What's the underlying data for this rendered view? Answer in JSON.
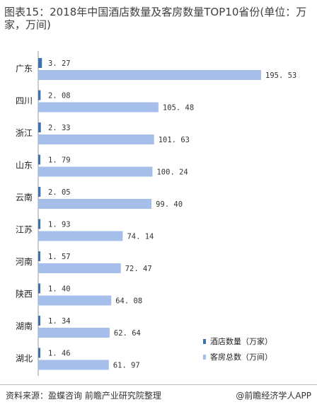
{
  "title": "图表15：2018年中国酒店数量及客房数量TOP10省份(单位：万家，万间)",
  "footer": {
    "source": "资料来源：盈蝶咨询 前瞻产业研究院整理",
    "brand": "@前瞻经济学人APP"
  },
  "colors": {
    "hotels": "#3f72af",
    "rooms": "#a6bfea",
    "axis": "#9a9a9a"
  },
  "chart_data": {
    "type": "bar",
    "orientation": "horizontal",
    "categories": [
      "广东",
      "四川",
      "浙江",
      "山东",
      "云南",
      "江苏",
      "河南",
      "陕西",
      "湖南",
      "湖北"
    ],
    "series": [
      {
        "name": "酒店数量（万家）",
        "values": [
          3.27,
          2.08,
          2.33,
          1.79,
          2.05,
          1.93,
          1.57,
          1.4,
          1.34,
          1.46
        ],
        "labels": [
          "3. 27",
          "2. 08",
          "2. 33",
          "1. 79",
          "2. 05",
          "1. 93",
          "1. 57",
          "1. 40",
          "1. 34",
          "1. 46"
        ]
      },
      {
        "name": "客房总数（万间）",
        "values": [
          195.53,
          105.48,
          101.63,
          100.24,
          99.4,
          74.14,
          72.47,
          64.08,
          62.64,
          61.97
        ],
        "labels": [
          "195. 53",
          "105. 48",
          "101. 63",
          "100. 24",
          "99. 40",
          "74. 14",
          "72. 47",
          "64. 08",
          "62. 64",
          "61. 97"
        ]
      }
    ],
    "legend_position": "bottom-right",
    "grid": false
  }
}
